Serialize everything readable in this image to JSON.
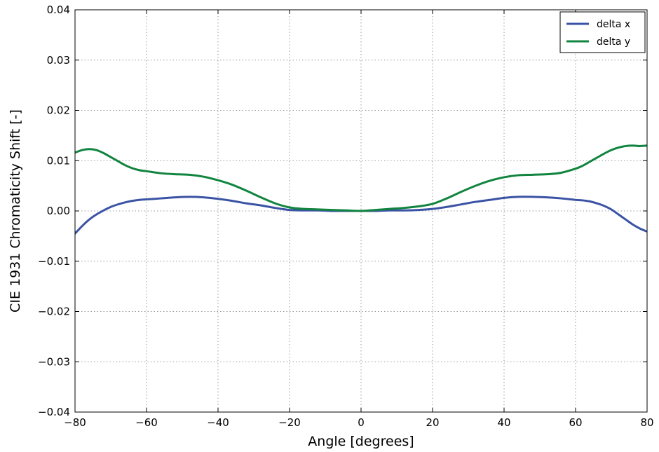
{
  "chart_data": {
    "type": "line",
    "xlabel": "Angle [degrees]",
    "ylabel": "CIE 1931 Chromaticity Shift  [-]",
    "xlim": [
      -80,
      80
    ],
    "ylim": [
      -0.04,
      0.04
    ],
    "xticks": [
      -80,
      -60,
      -40,
      -20,
      0,
      20,
      40,
      60,
      80
    ],
    "xtick_labels": [
      "−80",
      "−60",
      "−40",
      "−20",
      "0",
      "20",
      "40",
      "60",
      "80"
    ],
    "yticks": [
      -0.04,
      -0.03,
      -0.02,
      -0.01,
      0.0,
      0.01,
      0.02,
      0.03,
      0.04
    ],
    "ytick_labels": [
      "−0.04",
      "−0.03",
      "−0.02",
      "−0.01",
      "0.00",
      "0.01",
      "0.02",
      "0.03",
      "0.04"
    ],
    "grid": true,
    "legend_position": "top-right",
    "series": [
      {
        "name": "delta x",
        "color": "#3a53a4",
        "x": [
          -80,
          -78,
          -76,
          -74,
          -72,
          -70,
          -68,
          -66,
          -64,
          -62,
          -60,
          -56,
          -52,
          -48,
          -44,
          -40,
          -36,
          -32,
          -28,
          -24,
          -20,
          -16,
          -12,
          -8,
          -4,
          0,
          4,
          8,
          12,
          16,
          20,
          24,
          28,
          32,
          36,
          40,
          44,
          48,
          52,
          56,
          60,
          62,
          64,
          66,
          68,
          70,
          72,
          74,
          76,
          78,
          80
        ],
        "y": [
          -0.0045,
          -0.003,
          -0.0017,
          -0.0007,
          0.0001,
          0.0008,
          0.0013,
          0.0017,
          0.002,
          0.0022,
          0.0023,
          0.0025,
          0.0027,
          0.0028,
          0.0027,
          0.0024,
          0.002,
          0.0015,
          0.0011,
          0.0006,
          0.0002,
          0.0001,
          0.0001,
          0.0,
          0.0,
          0.0,
          0.0,
          0.0001,
          0.0001,
          0.0002,
          0.0004,
          0.0008,
          0.0013,
          0.0018,
          0.0022,
          0.0026,
          0.0028,
          0.0028,
          0.0027,
          0.0025,
          0.0022,
          0.0021,
          0.0019,
          0.0015,
          0.001,
          0.0003,
          -0.0007,
          -0.0017,
          -0.0027,
          -0.0035,
          -0.0041
        ]
      },
      {
        "name": "delta y",
        "color": "#11843f",
        "x": [
          -80,
          -78,
          -76,
          -74,
          -72,
          -70,
          -68,
          -66,
          -64,
          -62,
          -60,
          -56,
          -52,
          -48,
          -44,
          -40,
          -36,
          -32,
          -28,
          -24,
          -20,
          -16,
          -12,
          -8,
          -4,
          0,
          4,
          8,
          12,
          16,
          20,
          24,
          28,
          32,
          36,
          40,
          44,
          48,
          52,
          56,
          60,
          62,
          64,
          66,
          68,
          70,
          72,
          74,
          76,
          78,
          80
        ],
        "y": [
          0.0116,
          0.0121,
          0.0123,
          0.0121,
          0.0115,
          0.0107,
          0.0099,
          0.0091,
          0.0085,
          0.0081,
          0.0079,
          0.0075,
          0.0073,
          0.0072,
          0.0068,
          0.0061,
          0.0052,
          0.004,
          0.0027,
          0.0015,
          0.0007,
          0.0004,
          0.0003,
          0.0002,
          0.0001,
          0.0,
          0.0002,
          0.0004,
          0.0006,
          0.0009,
          0.0014,
          0.0025,
          0.0038,
          0.005,
          0.006,
          0.0067,
          0.0071,
          0.0072,
          0.0073,
          0.0076,
          0.0084,
          0.009,
          0.0098,
          0.0106,
          0.0114,
          0.0121,
          0.0126,
          0.0129,
          0.013,
          0.0129,
          0.013
        ]
      }
    ]
  }
}
